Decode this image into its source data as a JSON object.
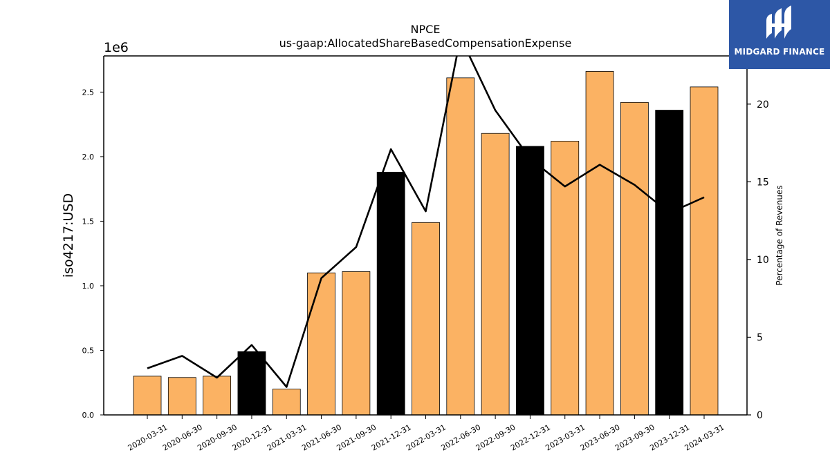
{
  "chart_data": {
    "type": "bar",
    "title": "NPCE",
    "subtitle": "us-gaap:AllocatedShareBasedCompensationExpense",
    "ylabel": "iso4217:USD",
    "y2label": "Percentage of Revenues",
    "offset_label": "1e6",
    "ylim": [
      0,
      2.78
    ],
    "y2lim": [
      0,
      23.1
    ],
    "yticks": [
      "0.0",
      "0.5",
      "1.0",
      "1.5",
      "2.0",
      "2.5"
    ],
    "y2ticks": [
      "0",
      "5",
      "10",
      "15",
      "20"
    ],
    "categories": [
      "2020-03-31",
      "2020-06-30",
      "2020-09-30",
      "2020-12-31",
      "2021-03-31",
      "2021-06-30",
      "2021-09-30",
      "2021-12-31",
      "2022-03-31",
      "2022-06-30",
      "2022-09-30",
      "2022-12-31",
      "2023-03-31",
      "2023-06-30",
      "2023-09-30",
      "2023-12-31",
      "2024-03-31"
    ],
    "values": [
      0.3,
      0.29,
      0.3,
      0.49,
      0.2,
      1.1,
      1.11,
      1.88,
      1.49,
      2.61,
      2.18,
      2.08,
      2.12,
      2.66,
      2.42,
      2.36,
      2.54
    ],
    "bar_colors": [
      "#fbb263",
      "#fbb263",
      "#fbb263",
      "#000000",
      "#fbb263",
      "#fbb263",
      "#fbb263",
      "#000000",
      "#fbb263",
      "#fbb263",
      "#fbb263",
      "#000000",
      "#fbb263",
      "#fbb263",
      "#fbb263",
      "#000000",
      "#fbb263"
    ],
    "line_values": [
      3.0,
      3.8,
      2.4,
      4.5,
      1.8,
      8.8,
      10.8,
      17.1,
      13.1,
      24.3,
      19.6,
      16.5,
      14.7,
      16.1,
      14.8,
      13.0,
      14.0
    ],
    "line_color": "#000000"
  },
  "logo": {
    "text": "MIDGARD FINANCE",
    "color": "#2d57a6"
  }
}
